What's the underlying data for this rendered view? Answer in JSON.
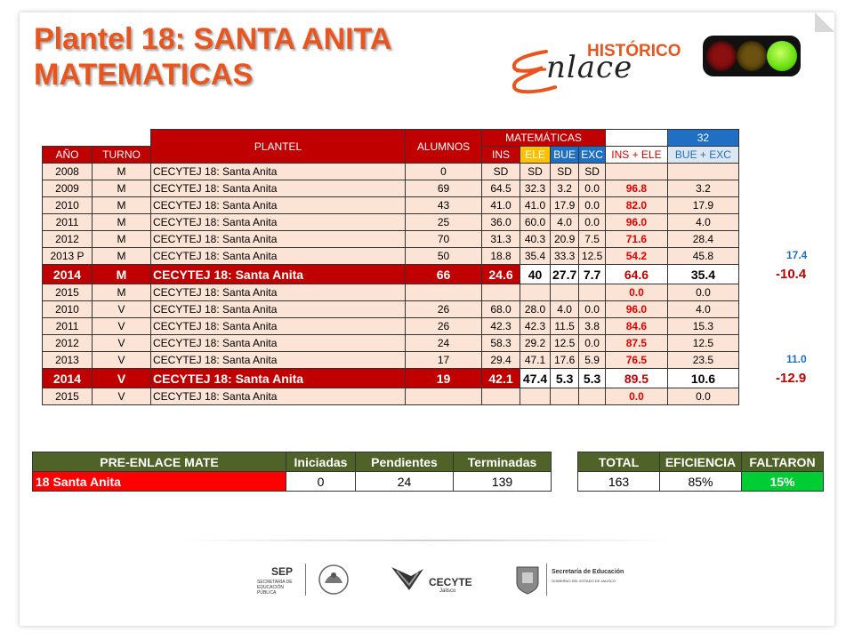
{
  "title": {
    "line1": "Plantel 18: SANTA ANITA",
    "line2": "MATEMATICAS"
  },
  "brand": {
    "historico": "HISTÓRICO",
    "enlace": "nlace"
  },
  "traffic_colors": {
    "red": "#8b1010",
    "yellow": "#7a5a10",
    "green": "#7cff1a"
  },
  "table": {
    "headers": {
      "plantel": "PLANTEL",
      "alumnos": "ALUMNOS",
      "matematicas": "MATEMÁTICAS",
      "count": "32",
      "anio": "AÑO",
      "turno": "TURNO",
      "ins": "INS",
      "ele": "ELE",
      "bue": "BUE",
      "exc": "EXC",
      "ins_ele": "INS + ELE",
      "bue_exc": "BUE + EXC"
    },
    "rows": [
      {
        "anio": "2008",
        "turno": "M",
        "plantel": "CECYTEJ 18: Santa Anita",
        "alumnos": "0",
        "ins": "SD",
        "ele": "SD",
        "bue": "SD",
        "exc": "SD",
        "ins_ele": "",
        "bue_exc": ""
      },
      {
        "anio": "2009",
        "turno": "M",
        "plantel": "CECYTEJ 18: Santa Anita",
        "alumnos": "69",
        "ins": "64.5",
        "ele": "32.3",
        "bue": "3.2",
        "exc": "0.0",
        "ins_ele": "96.8",
        "bue_exc": "3.2"
      },
      {
        "anio": "2010",
        "turno": "M",
        "plantel": "CECYTEJ 18: Santa Anita",
        "alumnos": "43",
        "ins": "41.0",
        "ele": "41.0",
        "bue": "17.9",
        "exc": "0.0",
        "ins_ele": "82.0",
        "bue_exc": "17.9"
      },
      {
        "anio": "2011",
        "turno": "M",
        "plantel": "CECYTEJ 18: Santa Anita",
        "alumnos": "25",
        "ins": "36.0",
        "ele": "60.0",
        "bue": "4.0",
        "exc": "0.0",
        "ins_ele": "96.0",
        "bue_exc": "4.0"
      },
      {
        "anio": "2012",
        "turno": "M",
        "plantel": "CECYTEJ 18: Santa Anita",
        "alumnos": "70",
        "ins": "31.3",
        "ele": "40.3",
        "bue": "20.9",
        "exc": "7.5",
        "ins_ele": "71.6",
        "bue_exc": "28.4"
      },
      {
        "anio": "2013 P",
        "turno": "M",
        "plantel": "CECYTEJ 18: Santa Anita",
        "alumnos": "50",
        "ins": "18.8",
        "ele": "35.4",
        "bue": "33.3",
        "exc": "12.5",
        "ins_ele": "54.2",
        "bue_exc": "45.8",
        "side": "17.4"
      },
      {
        "anio": "2014",
        "turno": "M",
        "plantel": "CECYTEJ 18: Santa Anita",
        "alumnos": "66",
        "ins": "24.6",
        "ele": "40",
        "bue": "27.7",
        "exc": "7.7",
        "ins_ele": "64.6",
        "bue_exc": "35.4",
        "side": "-10.4",
        "highlight": true
      },
      {
        "anio": "2015",
        "turno": "M",
        "plantel": "CECYTEJ 18: Santa Anita",
        "alumnos": "",
        "ins": "",
        "ele": "",
        "bue": "",
        "exc": "",
        "ins_ele": "0.0",
        "bue_exc": "0.0"
      },
      {
        "anio": "2010",
        "turno": "V",
        "plantel": "CECYTEJ 18: Santa Anita",
        "alumnos": "26",
        "ins": "68.0",
        "ele": "28.0",
        "bue": "4.0",
        "exc": "0.0",
        "ins_ele": "96.0",
        "bue_exc": "4.0"
      },
      {
        "anio": "2011",
        "turno": "V",
        "plantel": "CECYTEJ 18: Santa Anita",
        "alumnos": "26",
        "ins": "42.3",
        "ele": "42.3",
        "bue": "11.5",
        "exc": "3.8",
        "ins_ele": "84.6",
        "bue_exc": "15.3"
      },
      {
        "anio": "2012",
        "turno": "V",
        "plantel": "CECYTEJ 18: Santa Anita",
        "alumnos": "24",
        "ins": "58.3",
        "ele": "29.2",
        "bue": "12.5",
        "exc": "0.0",
        "ins_ele": "87.5",
        "bue_exc": "12.5"
      },
      {
        "anio": "2013",
        "turno": "V",
        "plantel": "CECYTEJ 18: Santa Anita",
        "alumnos": "17",
        "ins": "29.4",
        "ele": "47.1",
        "bue": "17.6",
        "exc": "5.9",
        "ins_ele": "76.5",
        "bue_exc": "23.5",
        "side": "11.0"
      },
      {
        "anio": "2014",
        "turno": "V",
        "plantel": "CECYTEJ 18: Santa Anita",
        "alumnos": "19",
        "ins": "42.1",
        "ele": "47.4",
        "bue": "5.3",
        "exc": "5.3",
        "ins_ele": "89.5",
        "bue_exc": "10.6",
        "side": "-12.9",
        "highlight": true
      },
      {
        "anio": "2015",
        "turno": "V",
        "plantel": "CECYTEJ 18: Santa Anita",
        "alumnos": "",
        "ins": "",
        "ele": "",
        "bue": "",
        "exc": "",
        "ins_ele": "0.0",
        "bue_exc": "0.0"
      }
    ]
  },
  "preenlace": {
    "headers": [
      "PRE-ENLACE MATE",
      "Iniciadas",
      "Pendientes",
      "Terminadas",
      "TOTAL",
      "EFICIENCIA",
      "FALTARON"
    ],
    "row": [
      "18 Santa Anita",
      "0",
      "24",
      "139",
      "163",
      "85%",
      "15%"
    ]
  },
  "footer": {
    "sep": "SEP",
    "sep_sub": "SECRETARÍA DE EDUCACIÓN PÚBLICA",
    "cecyte": "CECYTE",
    "cecyte_sub": "Jalisco",
    "sej": "Secretaría de Educación",
    "sej_sub": "GOBIERNO DEL ESTADO DE JALISCO"
  }
}
